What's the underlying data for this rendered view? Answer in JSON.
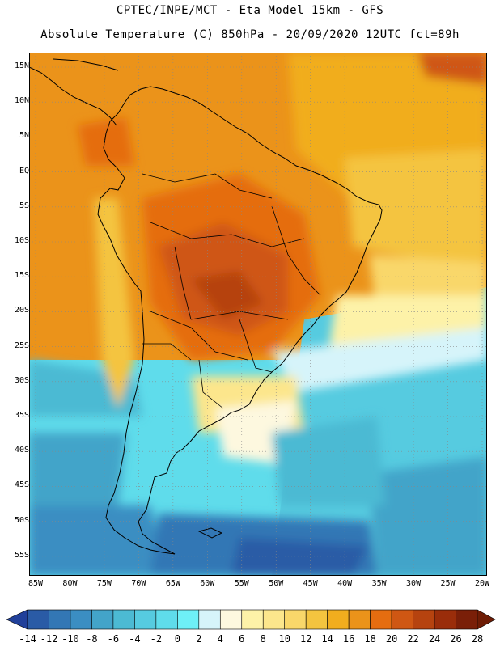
{
  "header": {
    "line1": "CPTEC/INPE/MCT -  Eta Model 15km - GFS",
    "line2": "Absolute Temperature (C) 850hPa - 20/09/2020 12UTC fct=89h"
  },
  "axes": {
    "lat_labels": [
      "15N",
      "10N",
      "5N",
      "EQ",
      "5S",
      "10S",
      "15S",
      "20S",
      "25S",
      "30S",
      "35S",
      "40S",
      "45S",
      "50S",
      "55S"
    ],
    "lon_labels": [
      "85W",
      "80W",
      "75W",
      "70W",
      "65W",
      "60W",
      "55W",
      "50W",
      "45W",
      "40W",
      "35W",
      "30W",
      "25W",
      "20W"
    ]
  },
  "colorbar": {
    "levels": [
      "-14",
      "-12",
      "-10",
      "-8",
      "-6",
      "-4",
      "-2",
      "0",
      "2",
      "4",
      "6",
      "8",
      "10",
      "12",
      "14",
      "16",
      "18",
      "20",
      "22",
      "24",
      "26",
      "28"
    ],
    "colors": [
      "#21409a",
      "#2a5ba6",
      "#3377b5",
      "#3b8ec2",
      "#43a4c9",
      "#4cbad3",
      "#56cbe0",
      "#5fdceb",
      "#6ef0f7",
      "#d6f4fa",
      "#fdf8df",
      "#fdf2a8",
      "#fce68c",
      "#f9d76a",
      "#f4c43f",
      "#f1ad1e",
      "#eb931a",
      "#e56d10",
      "#cf5713",
      "#b6430f",
      "#9a2d0a",
      "#7a1f08",
      "#6e1c05"
    ]
  }
}
